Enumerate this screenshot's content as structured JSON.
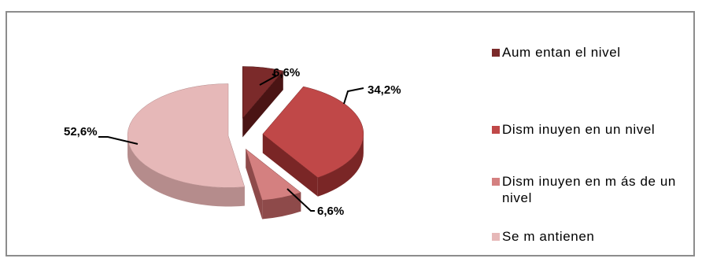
{
  "chart_data": {
    "type": "pie",
    "title": "",
    "categories": [
      "Aumentan el nivel",
      "Disminuyen en un nivel",
      "Disminuyen en más de un nivel",
      "Se mantienen"
    ],
    "values": [
      6.6,
      34.2,
      6.6,
      52.6
    ],
    "value_labels": [
      "6,6%",
      "34,2%",
      "6,6%",
      "52,6%"
    ],
    "colors": [
      "#7b2a2a",
      "#c04848",
      "#d48080",
      "#e6b8b8"
    ],
    "side_colors": [
      "#4a1414",
      "#7a2626",
      "#8e4a4a",
      "#b58c8c"
    ],
    "style": "3D exploded pie",
    "legend_position": "right"
  },
  "legend": {
    "items": [
      {
        "label": "Aum entan el nivel"
      },
      {
        "label": "Dism inuyen en un nivel"
      },
      {
        "label": "Dism inuyen en m ás de un nivel"
      },
      {
        "label": "Se m antienen"
      }
    ]
  }
}
